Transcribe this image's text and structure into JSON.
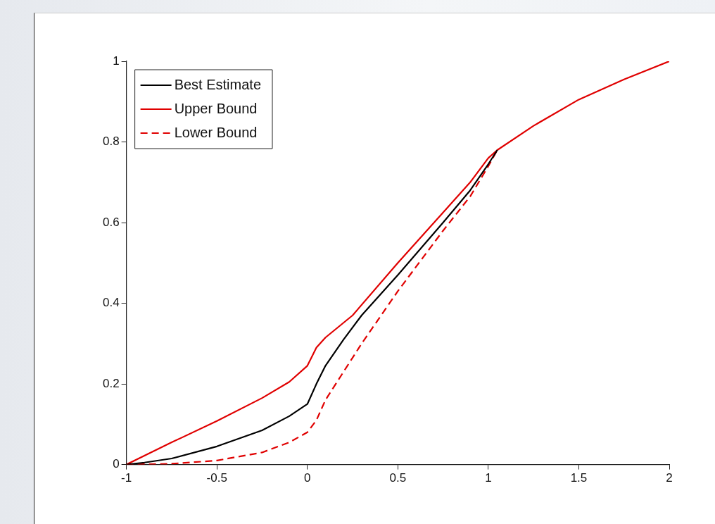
{
  "chart_data": {
    "type": "line",
    "xlim": [
      -1,
      2
    ],
    "xticks": [
      -1,
      -0.5,
      0,
      0.5,
      1,
      1.5,
      2
    ],
    "ylim": [
      0,
      1
    ],
    "yticks": [
      0,
      0.2,
      0.4,
      0.6,
      0.8,
      1
    ],
    "grid": false,
    "legend": "top left",
    "marker": "none",
    "series": [
      {
        "name": "Best Estimate",
        "color": "#000000",
        "line_style": "solid",
        "x": [
          -1,
          -0.9,
          -0.75,
          -0.5,
          -0.25,
          -0.1,
          0,
          0.05,
          0.1,
          0.2,
          0.3,
          0.5,
          0.75,
          0.9,
          1,
          1.05
        ],
        "values": [
          0,
          0.005,
          0.015,
          0.045,
          0.085,
          0.12,
          0.15,
          0.2,
          0.245,
          0.31,
          0.37,
          0.47,
          0.6,
          0.68,
          0.745,
          0.78
        ]
      },
      {
        "name": "Upper Bound",
        "color": "#e00000",
        "line_style": "solid",
        "x": [
          -1,
          -0.75,
          -0.5,
          -0.25,
          -0.1,
          0,
          0.05,
          0.1,
          0.25,
          0.5,
          0.75,
          0.9,
          1,
          1.05,
          1.25,
          1.5,
          1.75,
          2
        ],
        "values": [
          0,
          0.055,
          0.108,
          0.165,
          0.205,
          0.245,
          0.29,
          0.315,
          0.37,
          0.5,
          0.625,
          0.7,
          0.76,
          0.78,
          0.84,
          0.905,
          0.955,
          1
        ]
      },
      {
        "name": "Lower Bound",
        "color": "#e00000",
        "line_style": "dashed",
        "x": [
          -1,
          -0.75,
          -0.5,
          -0.25,
          -0.1,
          0,
          0.05,
          0.1,
          0.2,
          0.3,
          0.5,
          0.75,
          0.9,
          1,
          1.05
        ],
        "values": [
          0,
          0.002,
          0.01,
          0.03,
          0.055,
          0.08,
          0.11,
          0.16,
          0.23,
          0.3,
          0.43,
          0.58,
          0.665,
          0.74,
          0.78
        ]
      }
    ]
  }
}
